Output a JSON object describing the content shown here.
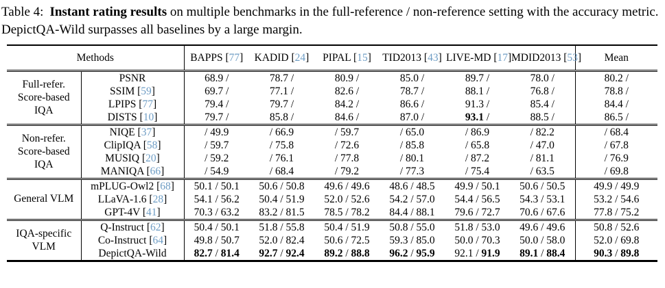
{
  "caption": {
    "label": "Table 4:",
    "highlight": "Instant rating results",
    "rest": " on multiple benchmarks in the full-reference / non-reference setting with the accuracy metric. DepictQA-Wild surpasses all baselines by a large margin."
  },
  "colors": {
    "citation_link": "#6d9cc4",
    "text": "#000000",
    "background": "#ffffff"
  },
  "table": {
    "methods_header": "Methods",
    "mean_header": "Mean",
    "benchmarks": [
      {
        "name": "BAPPS",
        "cite": "77"
      },
      {
        "name": "KADID",
        "cite": "24"
      },
      {
        "name": "PIPAL",
        "cite": "15"
      },
      {
        "name": "TID2013",
        "cite": "43"
      },
      {
        "name": "LIVE-MD",
        "cite": "17"
      },
      {
        "name": "MDID2013",
        "cite": "53"
      }
    ],
    "groups": [
      {
        "label": "Full-refer. Score-based IQA",
        "rows": [
          {
            "method": "PSNR",
            "cite": null,
            "cells": [
              {
                "fr": "68.9"
              },
              {
                "fr": "78.7"
              },
              {
                "fr": "80.9"
              },
              {
                "fr": "85.0"
              },
              {
                "fr": "89.7"
              },
              {
                "fr": "78.0"
              }
            ],
            "mean": {
              "fr": "80.2"
            }
          },
          {
            "method": "SSIM",
            "cite": "59",
            "cells": [
              {
                "fr": "69.7"
              },
              {
                "fr": "77.1"
              },
              {
                "fr": "82.6"
              },
              {
                "fr": "78.7"
              },
              {
                "fr": "88.1"
              },
              {
                "fr": "76.8"
              }
            ],
            "mean": {
              "fr": "78.8"
            }
          },
          {
            "method": "LPIPS",
            "cite": "77",
            "cells": [
              {
                "fr": "79.4"
              },
              {
                "fr": "79.7"
              },
              {
                "fr": "84.2"
              },
              {
                "fr": "86.6"
              },
              {
                "fr": "91.3"
              },
              {
                "fr": "85.4"
              }
            ],
            "mean": {
              "fr": "84.4"
            }
          },
          {
            "method": "DISTS",
            "cite": "10",
            "cells": [
              {
                "fr": "79.7"
              },
              {
                "fr": "85.8"
              },
              {
                "fr": "84.6"
              },
              {
                "fr": "87.0"
              },
              {
                "fr": "93.1",
                "fb": true
              },
              {
                "fr": "88.5"
              }
            ],
            "mean": {
              "fr": "86.5"
            }
          }
        ]
      },
      {
        "label": "Non-refer. Score-based IQA",
        "rows": [
          {
            "method": "NIQE",
            "cite": "37",
            "cells": [
              {
                "nr": "49.9"
              },
              {
                "nr": "66.9"
              },
              {
                "nr": "59.7"
              },
              {
                "nr": "65.0"
              },
              {
                "nr": "86.9"
              },
              {
                "nr": "82.2"
              }
            ],
            "mean": {
              "nr": "68.4"
            }
          },
          {
            "method": "ClipIQA",
            "cite": "58",
            "cells": [
              {
                "nr": "59.7"
              },
              {
                "nr": "75.8"
              },
              {
                "nr": "72.6"
              },
              {
                "nr": "85.8"
              },
              {
                "nr": "65.8"
              },
              {
                "nr": "47.0"
              }
            ],
            "mean": {
              "nr": "67.8"
            }
          },
          {
            "method": "MUSIQ",
            "cite": "20",
            "cells": [
              {
                "nr": "59.2"
              },
              {
                "nr": "76.1"
              },
              {
                "nr": "77.8"
              },
              {
                "nr": "80.1"
              },
              {
                "nr": "87.2"
              },
              {
                "nr": "81.1"
              }
            ],
            "mean": {
              "nr": "76.9"
            }
          },
          {
            "method": "MANIQA",
            "cite": "66",
            "cells": [
              {
                "nr": "54.9"
              },
              {
                "nr": "68.4"
              },
              {
                "nr": "79.2"
              },
              {
                "nr": "77.3"
              },
              {
                "nr": "75.4"
              },
              {
                "nr": "63.5"
              }
            ],
            "mean": {
              "nr": "69.8"
            }
          }
        ]
      },
      {
        "label": "General VLM",
        "rows": [
          {
            "method": "mPLUG-Owl2",
            "cite": "68",
            "cells": [
              {
                "fr": "50.1",
                "nr": "50.1"
              },
              {
                "fr": "50.6",
                "nr": "50.8"
              },
              {
                "fr": "49.6",
                "nr": "49.6"
              },
              {
                "fr": "48.6",
                "nr": "48.5"
              },
              {
                "fr": "49.9",
                "nr": "50.1"
              },
              {
                "fr": "50.6",
                "nr": "50.5"
              }
            ],
            "mean": {
              "fr": "49.9",
              "nr": "49.9"
            }
          },
          {
            "method": "LLaVA-1.6",
            "cite": "28",
            "cells": [
              {
                "fr": "54.1",
                "nr": "56.2"
              },
              {
                "fr": "50.4",
                "nr": "51.9"
              },
              {
                "fr": "52.0",
                "nr": "52.6"
              },
              {
                "fr": "54.2",
                "nr": "57.0"
              },
              {
                "fr": "54.4",
                "nr": "56.5"
              },
              {
                "fr": "54.3",
                "nr": "53.1"
              }
            ],
            "mean": {
              "fr": "53.2",
              "nr": "54.6"
            }
          },
          {
            "method": "GPT-4V",
            "cite": "41",
            "cells": [
              {
                "fr": "70.3",
                "nr": "63.2"
              },
              {
                "fr": "83.2",
                "nr": "81.5"
              },
              {
                "fr": "78.5",
                "nr": "78.2"
              },
              {
                "fr": "84.4",
                "nr": "88.1"
              },
              {
                "fr": "79.6",
                "nr": "72.7"
              },
              {
                "fr": "70.6",
                "nr": "67.6"
              }
            ],
            "mean": {
              "fr": "77.8",
              "nr": "75.2"
            }
          }
        ]
      },
      {
        "label": "IQA-specific VLM",
        "rows": [
          {
            "method": "Q-Instruct",
            "cite": "62",
            "cells": [
              {
                "fr": "50.4",
                "nr": "50.1"
              },
              {
                "fr": "51.8",
                "nr": "55.8"
              },
              {
                "fr": "50.4",
                "nr": "51.9"
              },
              {
                "fr": "50.8",
                "nr": "55.0"
              },
              {
                "fr": "51.8",
                "nr": "53.0"
              },
              {
                "fr": "49.6",
                "nr": "49.6"
              }
            ],
            "mean": {
              "fr": "50.8",
              "nr": "52.6"
            }
          },
          {
            "method": "Co-Instruct",
            "cite": "64",
            "cells": [
              {
                "fr": "49.8",
                "nr": "50.7"
              },
              {
                "fr": "52.0",
                "nr": "82.4"
              },
              {
                "fr": "50.6",
                "nr": "72.5"
              },
              {
                "fr": "59.3",
                "nr": "85.0"
              },
              {
                "fr": "50.0",
                "nr": "70.3"
              },
              {
                "fr": "50.0",
                "nr": "58.0"
              }
            ],
            "mean": {
              "fr": "52.0",
              "nr": "69.8"
            }
          },
          {
            "method": "DepictQA-Wild",
            "cite": null,
            "cells": [
              {
                "fr": "82.7",
                "nr": "81.4",
                "fb": true,
                "nb": true
              },
              {
                "fr": "92.7",
                "nr": "92.4",
                "fb": true,
                "nb": true
              },
              {
                "fr": "89.2",
                "nr": "88.8",
                "fb": true,
                "nb": true
              },
              {
                "fr": "96.2",
                "nr": "95.9",
                "fb": true,
                "nb": true
              },
              {
                "fr": "92.1",
                "nr": "91.9",
                "nb": true
              },
              {
                "fr": "89.1",
                "nr": "88.4",
                "fb": true,
                "nb": true
              }
            ],
            "mean": {
              "fr": "90.3",
              "nr": "89.8",
              "fb": true,
              "nb": true
            }
          }
        ]
      }
    ]
  }
}
